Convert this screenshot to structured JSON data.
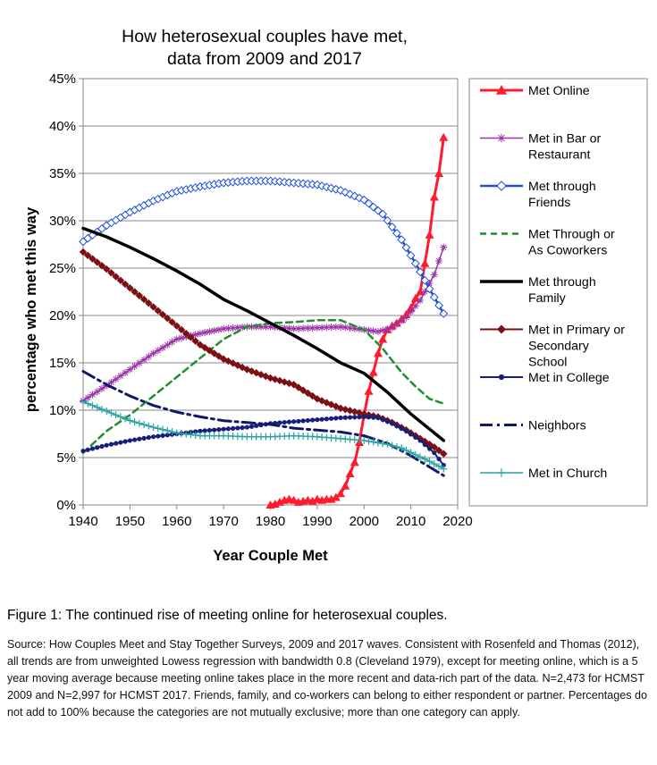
{
  "chart_data": {
    "type": "line",
    "title_lines": [
      "How heterosexual couples have met,",
      "data from 2009 and 2017"
    ],
    "xlabel": "Year Couple Met",
    "ylabel": "percentage who met this way",
    "xlim": [
      1940,
      2020
    ],
    "ylim": [
      0,
      45
    ],
    "xticks": [
      1940,
      1950,
      1960,
      1970,
      1980,
      1990,
      2000,
      2010,
      2020
    ],
    "yticks": [
      0,
      5,
      10,
      15,
      20,
      25,
      30,
      35,
      40,
      45
    ],
    "ytick_labels": [
      "0%",
      "5%",
      "10%",
      "15%",
      "20%",
      "25%",
      "30%",
      "35%",
      "40%",
      "45%"
    ],
    "grid": "horizontal",
    "legend_position": "right",
    "series": [
      {
        "name": "Met Online",
        "legend_lines": [
          "Met Online"
        ],
        "color": "#ff1a2e",
        "dash": "",
        "width": 3,
        "marker": "triangle",
        "x": [
          1980,
          1981,
          1982,
          1983,
          1984,
          1985,
          1986,
          1987,
          1988,
          1989,
          1990,
          1991,
          1992,
          1993,
          1994,
          1995,
          1996,
          1997,
          1998,
          1999,
          2000,
          2001,
          2002,
          2003,
          2004,
          2005,
          2006,
          2007,
          2008,
          2009,
          2010,
          2011,
          2012,
          2013,
          2014,
          2015,
          2016,
          2017
        ],
        "values": [
          0,
          0.1,
          0.3,
          0.5,
          0.6,
          0.5,
          0.3,
          0.4,
          0.5,
          0.4,
          0.6,
          0.5,
          0.6,
          0.6,
          0.8,
          1.2,
          2.0,
          3.3,
          4.5,
          6.6,
          9.5,
          12.0,
          14.0,
          16.0,
          17.5,
          18.5,
          18.9,
          19.2,
          19.6,
          20.1,
          20.8,
          21.8,
          22.5,
          25.5,
          28.5,
          32.5,
          35.0,
          38.8
        ]
      },
      {
        "name": "Met in Bar or Restaurant",
        "legend_lines": [
          "Met in Bar or",
          "Restaurant"
        ],
        "color": "#9b33a8",
        "dash": "",
        "width": 1.5,
        "marker": "star",
        "x": [
          1940,
          1945,
          1950,
          1955,
          1960,
          1965,
          1970,
          1975,
          1980,
          1985,
          1990,
          1995,
          2000,
          2003,
          2006,
          2009,
          2012,
          2015,
          2017
        ],
        "values": [
          11.0,
          12.6,
          14.3,
          16.0,
          17.5,
          18.1,
          18.6,
          18.8,
          18.8,
          18.6,
          18.7,
          18.8,
          18.5,
          18.3,
          18.7,
          19.8,
          21.6,
          24.3,
          27.2
        ]
      },
      {
        "name": "Met through Friends",
        "legend_lines": [
          "Met through",
          "Friends"
        ],
        "color": "#1f4fe0",
        "dash": "",
        "width": 2.5,
        "marker": "diamond-open",
        "x": [
          1940,
          1945,
          1950,
          1955,
          1960,
          1965,
          1970,
          1975,
          1980,
          1985,
          1990,
          1995,
          2000,
          2004,
          2008,
          2011,
          2014,
          2017
        ],
        "values": [
          27.8,
          29.5,
          30.9,
          32.1,
          33.1,
          33.6,
          34.0,
          34.2,
          34.2,
          34.0,
          33.8,
          33.2,
          32.2,
          30.7,
          28.0,
          25.5,
          22.8,
          20.2
        ]
      },
      {
        "name": "Met Through or As Coworkers",
        "legend_lines": [
          "Met Through or",
          "As Coworkers"
        ],
        "color": "#1e8f2a",
        "dash": "7,5",
        "width": 2.5,
        "marker": "none",
        "x": [
          1940,
          1945,
          1950,
          1955,
          1960,
          1965,
          1970,
          1975,
          1980,
          1985,
          1990,
          1995,
          2000,
          2004,
          2008,
          2011,
          2014,
          2017
        ],
        "values": [
          5.5,
          7.8,
          9.5,
          11.5,
          13.5,
          15.5,
          17.5,
          18.8,
          19.2,
          19.3,
          19.5,
          19.5,
          18.5,
          16.5,
          14.0,
          12.5,
          11.2,
          10.7
        ]
      },
      {
        "name": "Met through Family",
        "legend_lines": [
          "Met through",
          "Family"
        ],
        "color": "#000000",
        "dash": "",
        "width": 3.5,
        "marker": "none",
        "x": [
          1940,
          1945,
          1950,
          1955,
          1960,
          1965,
          1970,
          1975,
          1980,
          1985,
          1990,
          1995,
          2000,
          2005,
          2010,
          2014,
          2017
        ],
        "values": [
          29.2,
          28.3,
          27.2,
          26.0,
          24.7,
          23.3,
          21.7,
          20.5,
          19.2,
          17.9,
          16.5,
          15.0,
          13.9,
          11.9,
          9.6,
          8.0,
          6.8
        ]
      },
      {
        "name": "Met in Primary or Secondary School",
        "legend_lines": [
          "Met in Primary or",
          "Secondary",
          "School"
        ],
        "color": "#7a0f14",
        "dash": "",
        "width": 2,
        "marker": "diamond",
        "x": [
          1940,
          1945,
          1950,
          1955,
          1960,
          1965,
          1970,
          1975,
          1980,
          1985,
          1990,
          1995,
          2000,
          2003,
          2006,
          2009,
          2012,
          2015,
          2017
        ],
        "values": [
          26.7,
          24.9,
          22.9,
          20.9,
          18.9,
          16.9,
          15.4,
          14.3,
          13.4,
          12.7,
          11.2,
          10.2,
          9.6,
          9.3,
          8.7,
          7.9,
          7.0,
          6.1,
          5.4
        ]
      },
      {
        "name": "Met in College",
        "legend_lines": [
          "Met in College"
        ],
        "color": "#161f7a",
        "dash": "",
        "width": 2,
        "marker": "dot",
        "x": [
          1940,
          1945,
          1950,
          1955,
          1960,
          1965,
          1970,
          1975,
          1980,
          1985,
          1990,
          1995,
          2000,
          2003,
          2006,
          2009,
          2012,
          2015,
          2017
        ],
        "values": [
          5.7,
          6.3,
          6.8,
          7.2,
          7.5,
          7.8,
          8.0,
          8.2,
          8.6,
          8.8,
          9.0,
          9.2,
          9.3,
          9.2,
          8.6,
          7.8,
          6.8,
          5.5,
          4.2
        ]
      },
      {
        "name": "Neighbors",
        "legend_lines": [
          "Neighbors"
        ],
        "color": "#10186b",
        "dash": "14,5,3,5",
        "width": 3,
        "marker": "none",
        "x": [
          1940,
          1945,
          1950,
          1955,
          1960,
          1965,
          1970,
          1975,
          1980,
          1985,
          1990,
          1995,
          2000,
          2005,
          2010,
          2014,
          2017
        ],
        "values": [
          14.1,
          12.7,
          11.5,
          10.5,
          9.8,
          9.3,
          8.9,
          8.7,
          8.5,
          8.1,
          7.9,
          7.7,
          7.3,
          6.5,
          5.2,
          4.0,
          3.1
        ]
      },
      {
        "name": "Met in Church",
        "legend_lines": [
          "Met in Church"
        ],
        "color": "#29a3a3",
        "dash": "",
        "width": 1.5,
        "marker": "plus",
        "x": [
          1940,
          1945,
          1950,
          1955,
          1960,
          1965,
          1970,
          1975,
          1980,
          1985,
          1990,
          1995,
          2000,
          2005,
          2008,
          2011,
          2014,
          2017
        ],
        "values": [
          10.9,
          9.9,
          8.9,
          8.2,
          7.6,
          7.3,
          7.3,
          7.2,
          7.2,
          7.3,
          7.2,
          7.0,
          6.8,
          6.4,
          6.0,
          5.3,
          4.6,
          3.8
        ]
      }
    ]
  },
  "caption": "Figure 1: The continued rise of meeting online for heterosexual couples.",
  "source_text": "Source: How Couples Meet and Stay Together Surveys, 2009 and 2017 waves. Consistent with Rosenfeld and Thomas (2012), all trends are from unweighted Lowess regression with bandwidth 0.8 (Cleveland 1979), except for meeting online, which is a 5 year moving average because meeting online takes place in the more recent and data-rich part of the data. N=2,473 for HCMST 2009 and N=2,997 for HCMST 2017. Friends, family, and co-workers can belong to either respondent or partner. Percentages do not add to 100% because the categories are not mutually exclusive; more than one category can apply."
}
